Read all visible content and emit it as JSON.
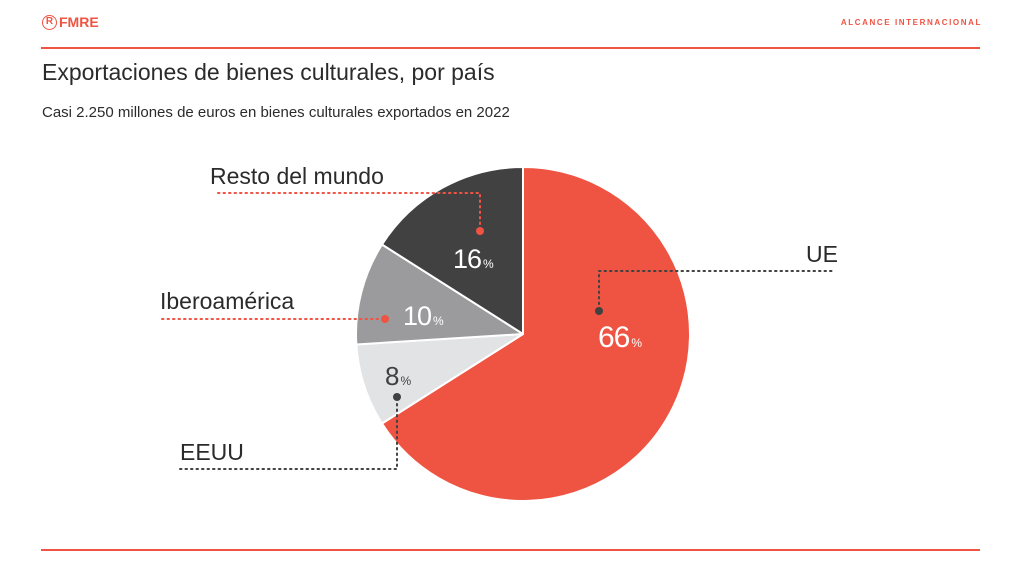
{
  "header": {
    "logo_text": "FMRE",
    "logo_mark": "R",
    "section_label": "ALCANCE INTERNACIONAL"
  },
  "colors": {
    "accent": "#ef5443",
    "ue": "#ef5443",
    "eeuu": "#e2e3e5",
    "iberoamerica": "#9b9b9d",
    "resto": "#414142",
    "text": "#2b2b2b"
  },
  "chart_data": {
    "type": "pie",
    "title": "Exportaciones de bienes culturales, por país",
    "subtitle": "Casi 2.250 millones de euros en bienes culturales exportados en 2022",
    "start": "top",
    "direction": "clockwise",
    "unit": "%",
    "slices": [
      {
        "label": "UE",
        "value": 66,
        "color": "#ef5443",
        "value_color": "#ffffff",
        "dot_color": "#414142",
        "leader_color": "#414142"
      },
      {
        "label": "EEUU",
        "value": 8,
        "color": "#e2e3e5",
        "value_color": "#414142",
        "dot_color": "#414142",
        "leader_color": "#414142"
      },
      {
        "label": "Iberoamérica",
        "value": 10,
        "color": "#9b9b9d",
        "value_color": "#ffffff",
        "dot_color": "#ef5443",
        "leader_color": "#ef5443"
      },
      {
        "label": "Resto del mundo",
        "value": 16,
        "color": "#414142",
        "value_color": "#ffffff",
        "dot_color": "#ef5443",
        "leader_color": "#ef5443"
      }
    ]
  }
}
